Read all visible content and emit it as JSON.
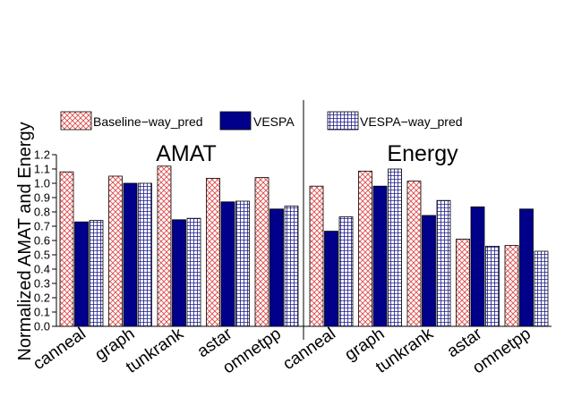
{
  "chart_data": {
    "type": "bar",
    "ylabel": "Normalized AMAT and Energy",
    "ylim": [
      0,
      1.2
    ],
    "yticks": [
      "0.0",
      "0.1",
      "0.2",
      "0.3",
      "0.4",
      "0.5",
      "0.6",
      "0.7",
      "0.8",
      "0.9",
      "1.0",
      "1.1",
      "1.2"
    ],
    "grid": false,
    "legend_position": "top",
    "panels": [
      {
        "title": "AMAT",
        "categories": [
          "canneal",
          "graph",
          "tunkrank",
          "astar",
          "omnetpp"
        ],
        "series": [
          {
            "name": "Baseline−way_pred",
            "values": [
              1.08,
              1.05,
              1.12,
              1.035,
              1.04
            ]
          },
          {
            "name": "VESPA",
            "values": [
              0.73,
              1.0,
              0.745,
              0.87,
              0.82
            ]
          },
          {
            "name": "VESPA−way_pred",
            "values": [
              0.74,
              1.0,
              0.755,
              0.875,
              0.84
            ]
          }
        ]
      },
      {
        "title": "Energy",
        "categories": [
          "canneal",
          "graph",
          "tunkrank",
          "astar",
          "omnetpp"
        ],
        "series": [
          {
            "name": "Baseline−way_pred",
            "values": [
              0.98,
              1.085,
              1.015,
              0.61,
              0.565
            ]
          },
          {
            "name": "VESPA",
            "values": [
              0.665,
              0.98,
              0.775,
              0.835,
              0.82
            ]
          },
          {
            "name": "VESPA−way_pred",
            "values": [
              0.765,
              1.1,
              0.88,
              0.56,
              0.525
            ]
          }
        ]
      }
    ],
    "series_styles": [
      {
        "name": "Baseline−way_pred",
        "fill": "crosshatch",
        "color": "#e04a4a"
      },
      {
        "name": "VESPA",
        "fill": "solid",
        "color": "#00008b"
      },
      {
        "name": "VESPA−way_pred",
        "fill": "grid",
        "color": "#1a1a8c"
      }
    ]
  }
}
